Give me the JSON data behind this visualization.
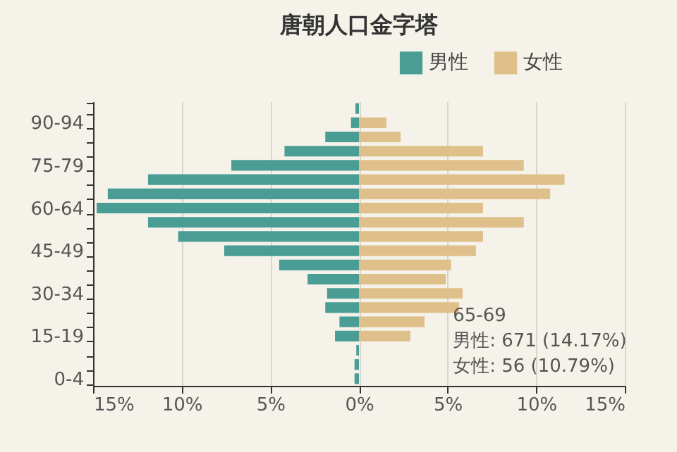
{
  "chart_data": {
    "type": "bar",
    "orientation": "horizontal",
    "title": "唐朝人口金字塔",
    "categories": [
      null,
      "90-94",
      null,
      null,
      "75-79",
      null,
      null,
      "60-64",
      null,
      null,
      "45-49",
      null,
      null,
      "30-34",
      null,
      null,
      "15-19",
      null,
      null,
      "0-4"
    ],
    "series": [
      {
        "name": "男性",
        "color": "#4a9d94",
        "values": [
          -0.2,
          -0.45,
          -1.9,
          -4.2,
          -7.2,
          -11.9,
          -14.17,
          -14.8,
          -11.9,
          -10.2,
          -7.6,
          -4.5,
          -2.9,
          -1.8,
          -1.9,
          -1.1,
          -1.35,
          -0.15,
          -0.25,
          -0.25
        ]
      },
      {
        "name": "女性",
        "color": "#e0c08a",
        "values": [
          0,
          1.55,
          2.35,
          7.0,
          9.3,
          11.6,
          10.79,
          7.0,
          9.3,
          7.0,
          6.6,
          5.2,
          4.9,
          5.85,
          5.65,
          3.7,
          2.9,
          0,
          0,
          0
        ]
      }
    ],
    "xlim": [
      -15,
      15
    ],
    "xticks": [
      {
        "value": -15,
        "label": "15%"
      },
      {
        "value": -10,
        "label": "10%"
      },
      {
        "value": -5,
        "label": "5%"
      },
      {
        "value": 0,
        "label": "0%"
      },
      {
        "value": 5,
        "label": "5%"
      },
      {
        "value": 10,
        "label": "10%"
      },
      {
        "value": 15,
        "label": "15%"
      }
    ],
    "grid": "x",
    "legend": "top right",
    "stacked": true,
    "annotations": [
      "65-69",
      "男性: 671 (14.17%)",
      "女性: 56 (10.79%)"
    ]
  }
}
